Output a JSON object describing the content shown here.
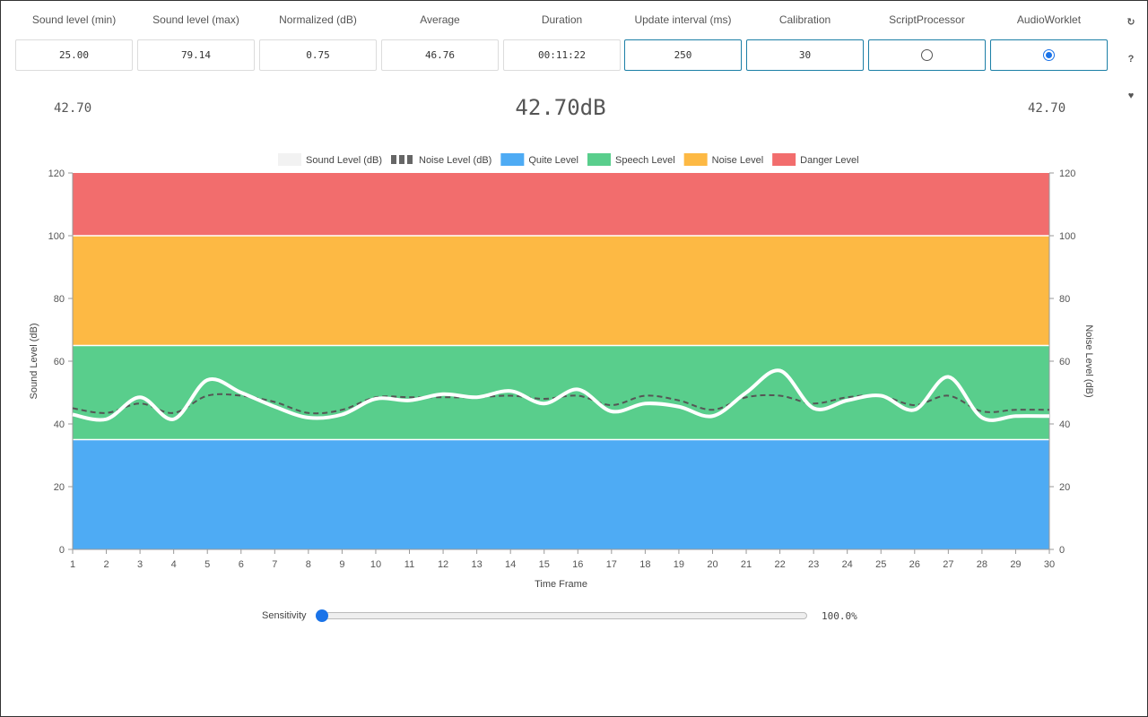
{
  "stats": [
    {
      "label": "Sound level (min)",
      "value": "25.00",
      "editable": false
    },
    {
      "label": "Sound level (max)",
      "value": "79.14",
      "editable": false
    },
    {
      "label": "Normalized (dB)",
      "value": "0.75",
      "editable": false
    },
    {
      "label": "Average",
      "value": "46.76",
      "editable": false
    },
    {
      "label": "Duration",
      "value": "00:11:22",
      "editable": false
    },
    {
      "label": "Update interval (ms)",
      "value": "250",
      "editable": true
    },
    {
      "label": "Calibration",
      "value": "30",
      "editable": true
    }
  ],
  "processors": [
    {
      "label": "ScriptProcessor",
      "checked": false
    },
    {
      "label": "AudioWorklet",
      "checked": true
    }
  ],
  "side_icons": [
    {
      "name": "refresh-icon",
      "glyph": "↻"
    },
    {
      "name": "help-icon",
      "glyph": "?"
    },
    {
      "name": "heart-icon",
      "glyph": "♥"
    }
  ],
  "readout": {
    "left": "42.70",
    "main": "42.70dB",
    "right": "42.70"
  },
  "chart_data": {
    "type": "line",
    "legend": [
      {
        "label": "Sound Level (dB)",
        "color": "#f2f2f2",
        "style": "solid"
      },
      {
        "label": "Noise Level (dB)",
        "color": "#666666",
        "style": "dashed"
      },
      {
        "label": "Quite Level",
        "color": "#4eabf4"
      },
      {
        "label": "Speech Level",
        "color": "#59ce8c"
      },
      {
        "label": "Noise Level",
        "color": "#fdb944"
      },
      {
        "label": "Danger Level",
        "color": "#f26d6d"
      }
    ],
    "bands": [
      {
        "name": "Quite Level",
        "from": 0,
        "to": 35,
        "color": "#4eabf4"
      },
      {
        "name": "Speech Level",
        "from": 35,
        "to": 65,
        "color": "#59ce8c"
      },
      {
        "name": "Noise Level",
        "from": 65,
        "to": 100,
        "color": "#fdb944"
      },
      {
        "name": "Danger Level",
        "from": 100,
        "to": 120,
        "color": "#f26d6d"
      }
    ],
    "x": [
      1,
      2,
      3,
      4,
      5,
      6,
      7,
      8,
      9,
      10,
      11,
      12,
      13,
      14,
      15,
      16,
      17,
      18,
      19,
      20,
      21,
      22,
      23,
      24,
      25,
      26,
      27,
      28,
      29,
      30
    ],
    "series": [
      {
        "name": "Sound Level (dB)",
        "color": "#ffffff",
        "values": [
          43,
          41.5,
          48.5,
          41.5,
          54,
          50,
          45.5,
          42,
          43,
          48,
          47.5,
          49.5,
          48.5,
          50.5,
          46.5,
          51,
          44,
          46.5,
          45.5,
          42.5,
          50,
          57,
          45,
          47.5,
          49,
          44.5,
          55,
          42,
          42.5,
          42.5
        ]
      },
      {
        "name": "Noise Level (dB)",
        "color": "#555555",
        "values": [
          45,
          43.5,
          46.5,
          43.5,
          49,
          49,
          47,
          43.5,
          44.5,
          48.5,
          48.5,
          48.5,
          48.5,
          49,
          48,
          49,
          46,
          49,
          47.5,
          44.5,
          48.5,
          49,
          46.5,
          48.5,
          49,
          46,
          49,
          44,
          44.5,
          44.5
        ]
      }
    ],
    "xlabel": "Time Frame",
    "ylabel": "Sound Level (dB)",
    "y2label": "Noise Level (dB)",
    "ylim": [
      0,
      120
    ],
    "yticks": [
      0,
      20,
      40,
      60,
      80,
      100,
      120
    ]
  },
  "sensitivity": {
    "label": "Sensitivity",
    "value": "100.0%",
    "level": 0
  }
}
